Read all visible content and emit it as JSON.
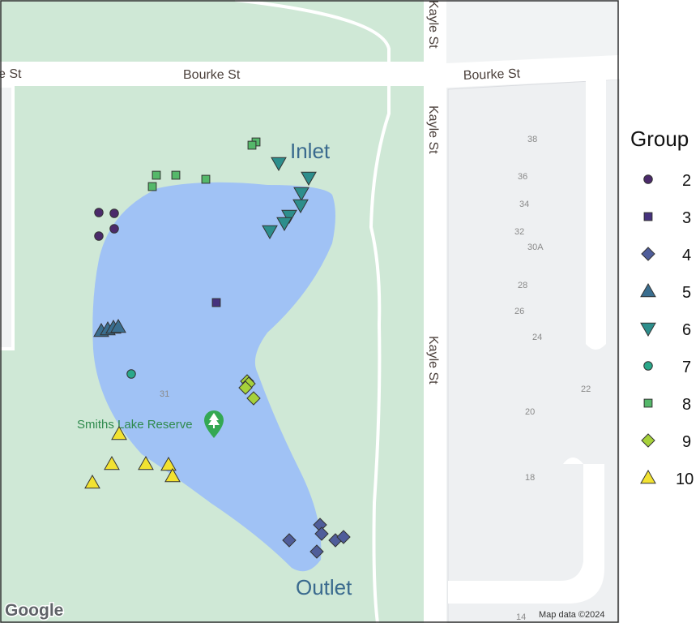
{
  "streets": {
    "bourke_west": "e St",
    "bourke_mid": "Bourke St",
    "bourke_east": "Bourke St",
    "kayle_top": "Kayle St",
    "kayle_mid": "Kayle St",
    "kayle_low": "Kayle St"
  },
  "house_numbers": [
    "38",
    "36",
    "34",
    "32",
    "30A",
    "28",
    "26",
    "24",
    "22",
    "20",
    "18",
    "14",
    "31"
  ],
  "annotations": {
    "inlet": "Inlet",
    "outlet": "Outlet"
  },
  "poi": {
    "label": "Smiths Lake Reserve",
    "icon": "tree-pin-icon"
  },
  "attribution": {
    "logo": "Google",
    "text": "Map data ©2024"
  },
  "legend": {
    "title": "Group",
    "items": [
      {
        "label": "2",
        "shape": "circle",
        "color": "#4b2a6b"
      },
      {
        "label": "3",
        "shape": "square",
        "color": "#46327e"
      },
      {
        "label": "4",
        "shape": "diamond",
        "color": "#4f5d9a"
      },
      {
        "label": "5",
        "shape": "triangle-up",
        "color": "#3a6e8f"
      },
      {
        "label": "6",
        "shape": "triangle-down",
        "color": "#2d8e8c"
      },
      {
        "label": "7",
        "shape": "circle",
        "color": "#2aa88a"
      },
      {
        "label": "8",
        "shape": "square",
        "color": "#55b86a"
      },
      {
        "label": "9",
        "shape": "diamond",
        "color": "#a6d13a"
      },
      {
        "label": "10",
        "shape": "triangle-up",
        "color": "#f2e231"
      }
    ]
  },
  "colors": {
    "park": "#cfe8d6",
    "lake": "#a0c2f5",
    "road": "#ffffff",
    "block": "#f1f3f4",
    "outline": "#333333"
  }
}
